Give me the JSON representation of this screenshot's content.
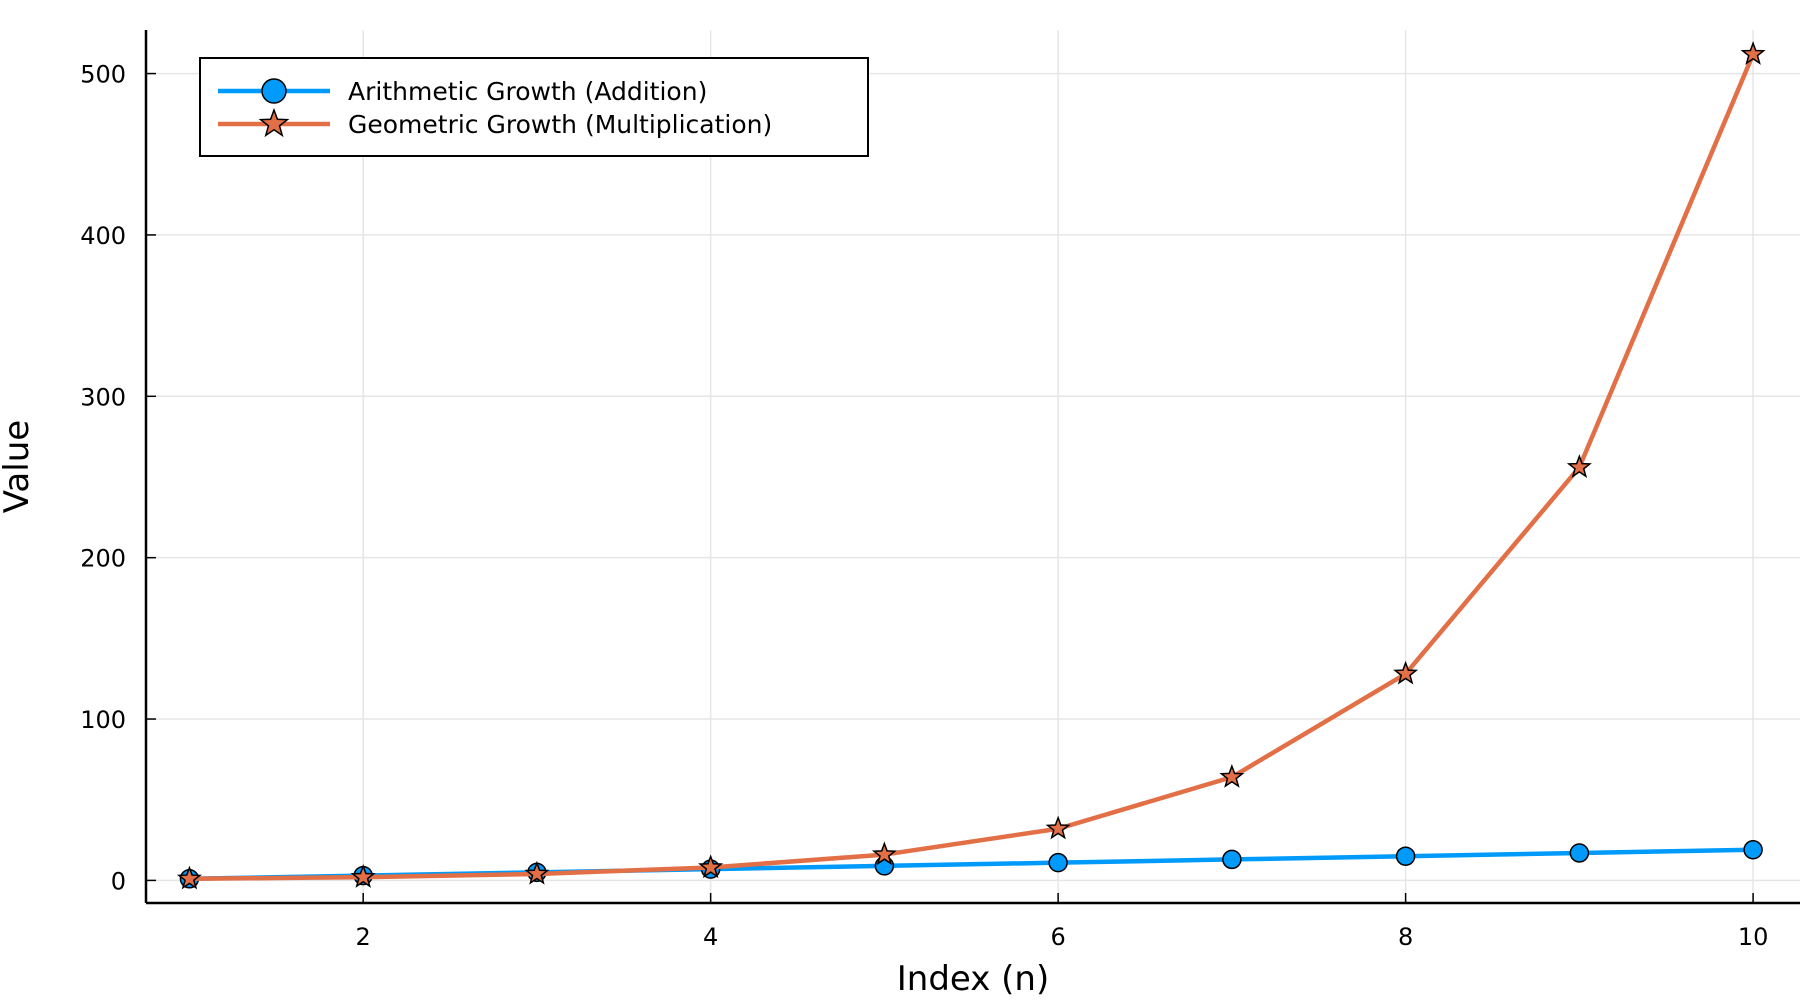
{
  "chart_data": {
    "type": "line",
    "title": "",
    "xlabel": "Index (n)",
    "ylabel": "Value",
    "xlim": [
      0.75,
      10.27
    ],
    "ylim": [
      -14,
      527
    ],
    "xticks": [
      2,
      4,
      6,
      8,
      10
    ],
    "xtick_labels": [
      "2",
      "4",
      "6",
      "8",
      "10"
    ],
    "yticks": [
      0,
      100,
      200,
      300,
      400,
      500
    ],
    "ytick_labels": [
      "0",
      "100",
      "200",
      "300",
      "400",
      "500"
    ],
    "grid": true,
    "legend_position": "top-left",
    "x": [
      1,
      2,
      3,
      4,
      5,
      6,
      7,
      8,
      9,
      10
    ],
    "series": [
      {
        "name": "Arithmetic Growth (Addition)",
        "marker": "circle",
        "color": "#009AFA",
        "values": [
          1,
          3,
          5,
          7,
          9,
          11,
          13,
          15,
          17,
          19
        ]
      },
      {
        "name": "Geometric Growth (Multiplication)",
        "marker": "star",
        "color": "#E26F46",
        "values": [
          1,
          2,
          4,
          8,
          16,
          32,
          64,
          128,
          256,
          512
        ]
      }
    ]
  }
}
